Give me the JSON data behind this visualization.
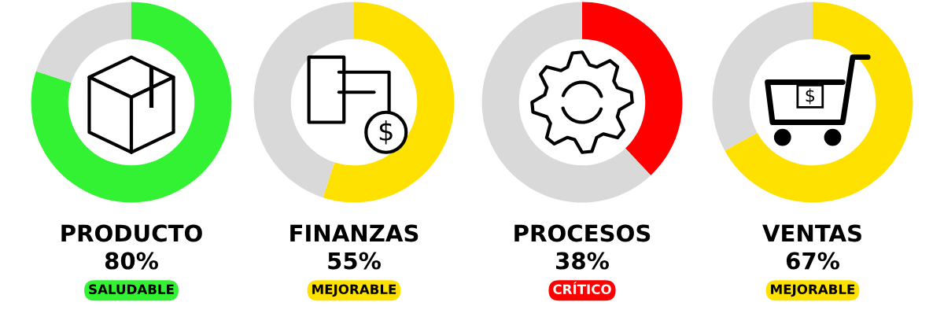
{
  "chart_data": [
    {
      "type": "donut",
      "title": "PRODUCTO",
      "categories": [
        null,
        null
      ],
      "values": [
        80,
        20
      ],
      "colors": [
        "#33f233",
        "#d9d9d9"
      ],
      "annotations": [
        "80%",
        "SALUDABLE"
      ]
    },
    {
      "type": "donut",
      "title": "FINANZAS",
      "categories": [
        null,
        null
      ],
      "values": [
        55,
        45
      ],
      "colors": [
        "#ffe100",
        "#d9d9d9"
      ],
      "annotations": [
        "55%",
        "MEJORABLE"
      ]
    },
    {
      "type": "donut",
      "title": "PROCESOS",
      "categories": [
        null,
        null
      ],
      "values": [
        38,
        62
      ],
      "colors": [
        "#ff0000",
        "#d9d9d9"
      ],
      "annotations": [
        "38%",
        "CRÍTICO"
      ]
    },
    {
      "type": "donut",
      "title": "VENTAS",
      "categories": [
        null,
        null
      ],
      "values": [
        67,
        33
      ],
      "colors": [
        "#ffe100",
        "#d9d9d9"
      ],
      "annotations": [
        "67%",
        "MEJORABLE"
      ]
    }
  ]
}
